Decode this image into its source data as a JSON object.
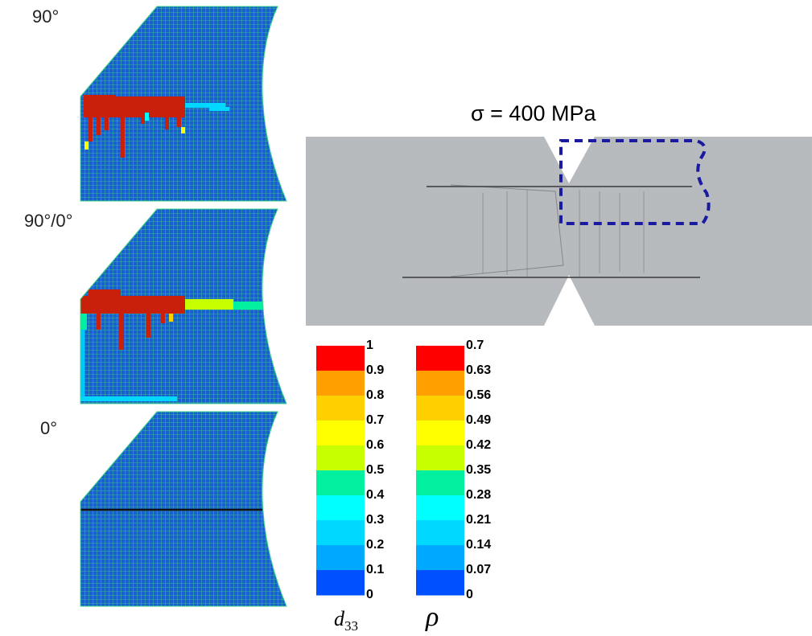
{
  "panels": [
    {
      "label": "90°"
    },
    {
      "label": "90°/0°"
    },
    {
      "label": "0°"
    }
  ],
  "photo": {
    "title": "σ = 400 MPa"
  },
  "colorbars": [
    {
      "symbol": {
        "base": "d",
        "sub": "33"
      },
      "ticks": [
        1,
        0.9,
        0.8,
        0.7,
        0.6,
        0.5,
        0.4,
        0.3,
        0.2,
        0.1,
        0
      ]
    },
    {
      "symbol": {
        "base": "ρ"
      },
      "ticks": [
        0.7,
        0.63,
        0.56,
        0.49,
        0.42,
        0.35,
        0.28,
        0.21,
        0.14,
        0.07,
        0
      ]
    }
  ],
  "band_colors": [
    "#ff0000",
    "#ffa000",
    "#ffd000",
    "#ffff00",
    "#c8ff00",
    "#00f0a0",
    "#00ffff",
    "#00d8ff",
    "#00a8ff",
    "#0050ff"
  ]
}
